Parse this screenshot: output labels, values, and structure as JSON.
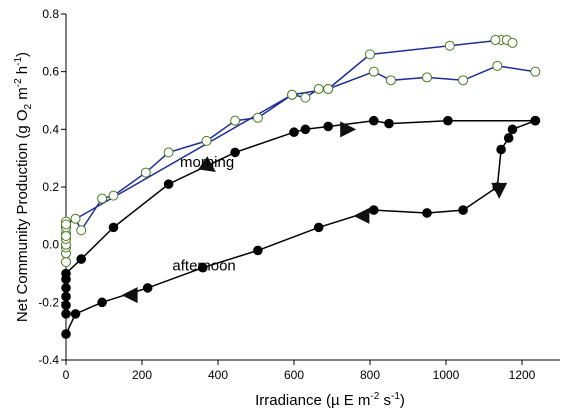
{
  "chart_data": {
    "type": "scatter",
    "title": "",
    "xlabel_parts": {
      "pre": "Irradiance (µ E m",
      "sup1": "-2",
      "mid": " s",
      "sup2": "-1",
      "post": ")"
    },
    "ylabel_parts": {
      "pre": "Net Community Production (g O",
      "sub1": "2",
      "mid1": " m",
      "sup1": "-2",
      "mid2": " h",
      "sup2": "-1",
      "post": ")"
    },
    "xlim": [
      0,
      1300
    ],
    "ylim": [
      -0.4,
      0.8
    ],
    "x_ticks": [
      0,
      200,
      400,
      600,
      800,
      1000,
      1200
    ],
    "y_ticks": [
      -0.4,
      -0.2,
      0.0,
      0.2,
      0.4,
      0.6,
      0.8
    ],
    "y_tick_labels": [
      "-0.4",
      "-0.2",
      "0.0",
      "0.2",
      "0.4",
      "0.6",
      "0.8"
    ],
    "grid": false,
    "annotations": [
      {
        "text": "morning",
        "x": 300,
        "y": 0.27
      },
      {
        "text": "afternoon",
        "x": 280,
        "y": -0.09
      }
    ],
    "colors": {
      "blue_line": "#1f2f96",
      "open_marker": "#4a7a1e",
      "black": "#000000"
    },
    "series": [
      {
        "style": "blue-open-circles",
        "points": [
          [
            0,
            -0.06
          ],
          [
            0,
            -0.03
          ],
          [
            0,
            -0.01
          ],
          [
            0,
            0.0
          ],
          [
            0,
            0.02
          ],
          [
            0,
            0.04
          ],
          [
            0,
            0.06
          ],
          [
            0,
            0.08
          ],
          [
            25,
            0.09
          ],
          [
            40,
            0.05
          ],
          [
            95,
            0.16
          ],
          [
            125,
            0.17
          ],
          [
            210,
            0.25
          ],
          [
            270,
            0.32
          ],
          [
            370,
            0.36
          ],
          [
            445,
            0.43
          ],
          [
            505,
            0.44
          ],
          [
            595,
            0.52
          ],
          [
            630,
            0.51
          ],
          [
            665,
            0.54
          ],
          [
            690,
            0.54
          ],
          [
            810,
            0.6
          ],
          [
            855,
            0.57
          ],
          [
            950,
            0.58
          ],
          [
            1045,
            0.57
          ],
          [
            1135,
            0.62
          ],
          [
            1235,
            0.6
          ]
        ]
      },
      {
        "style": "blue-open-circles",
        "points": [
          [
            0,
            0.03
          ],
          [
            0,
            0.06
          ],
          [
            0,
            0.07
          ],
          [
            595,
            0.52
          ],
          [
            690,
            0.54
          ],
          [
            800,
            0.66
          ],
          [
            1010,
            0.69
          ],
          [
            1145,
            0.71
          ],
          [
            1160,
            0.71
          ],
          [
            1175,
            0.7
          ],
          [
            1130,
            0.71
          ]
        ]
      },
      {
        "style": "black-filled-circles",
        "name": "morning",
        "points": [
          [
            0,
            -0.24
          ],
          [
            0,
            -0.21
          ],
          [
            0,
            -0.18
          ],
          [
            0,
            -0.15
          ],
          [
            0,
            -0.12
          ],
          [
            0,
            -0.1
          ],
          [
            40,
            -0.05
          ],
          [
            125,
            0.06
          ],
          [
            270,
            0.21
          ],
          [
            445,
            0.32
          ],
          [
            600,
            0.39
          ],
          [
            630,
            0.4
          ],
          [
            690,
            0.41
          ],
          [
            810,
            0.43
          ],
          [
            850,
            0.42
          ],
          [
            1005,
            0.43
          ],
          [
            1235,
            0.43
          ]
        ]
      },
      {
        "style": "black-filled-circles",
        "name": "afternoon",
        "points": [
          [
            1235,
            0.43
          ],
          [
            1175,
            0.4
          ],
          [
            1165,
            0.37
          ],
          [
            1145,
            0.33
          ],
          [
            1135,
            0.2
          ],
          [
            1045,
            0.12
          ],
          [
            950,
            0.11
          ],
          [
            810,
            0.12
          ],
          [
            665,
            0.06
          ],
          [
            505,
            -0.02
          ],
          [
            360,
            -0.08
          ],
          [
            215,
            -0.15
          ],
          [
            95,
            -0.2
          ],
          [
            25,
            -0.24
          ],
          [
            0,
            -0.31
          ]
        ]
      }
    ],
    "direction_arrows": [
      {
        "x": 375,
        "y": 0.27,
        "direction": "down-right"
      },
      {
        "x": 740,
        "y": 0.4,
        "direction": "right"
      },
      {
        "x": 1140,
        "y": 0.19,
        "direction": "down"
      },
      {
        "x": 780,
        "y": 0.1,
        "direction": "left"
      },
      {
        "x": 170,
        "y": -0.175,
        "direction": "left"
      }
    ]
  }
}
